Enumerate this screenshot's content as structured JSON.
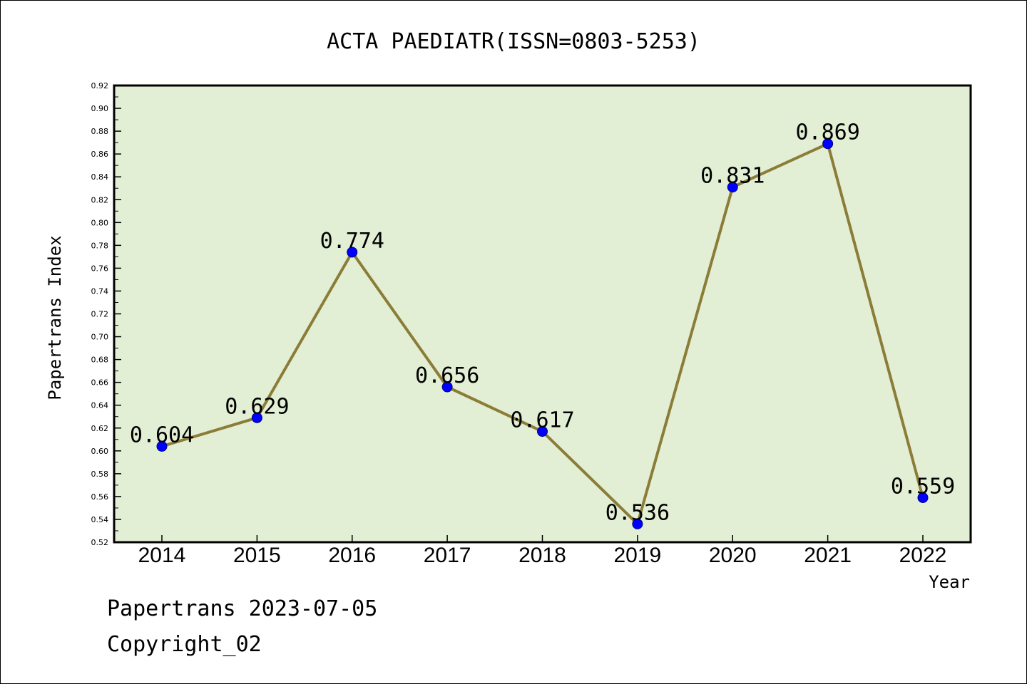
{
  "chart_data": {
    "type": "line",
    "title": "ACTA PAEDIATR(ISSN=0803-5253)",
    "xlabel": "Year",
    "ylabel": "Papertrans Index",
    "categories": [
      "2014",
      "2015",
      "2016",
      "2017",
      "2018",
      "2019",
      "2020",
      "2021",
      "2022"
    ],
    "values": [
      0.604,
      0.629,
      0.774,
      0.656,
      0.617,
      0.536,
      0.831,
      0.869,
      0.559
    ],
    "data_labels": [
      "0.604",
      "0.629",
      "0.774",
      "0.656",
      "0.617",
      "0.536",
      "0.831",
      "0.869",
      "0.559"
    ],
    "ylim": [
      0.52,
      0.92
    ],
    "yticks": [
      "0.52",
      "0.54",
      "0.56",
      "0.58",
      "0.60",
      "0.62",
      "0.64",
      "0.66",
      "0.68",
      "0.70",
      "0.72",
      "0.74",
      "0.76",
      "0.78",
      "0.80",
      "0.82",
      "0.84",
      "0.86",
      "0.88",
      "0.90",
      "0.92"
    ],
    "grid": false,
    "colors": {
      "plot_background": "#e2efd5",
      "line": "#8b7d37",
      "marker": "#0000ff"
    }
  },
  "footer": {
    "credit": "Papertrans 2023-07-05",
    "copyright": "Copyright_02"
  }
}
